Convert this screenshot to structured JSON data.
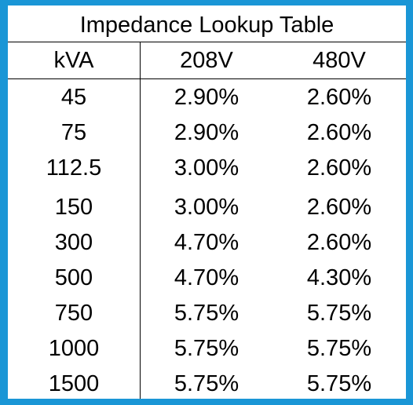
{
  "title": "Impedance Lookup Table",
  "headers": [
    "kVA",
    "208V",
    "480V"
  ],
  "rows": [
    [
      "45",
      "2.90%",
      "2.60%"
    ],
    [
      "75",
      "2.90%",
      "2.60%"
    ],
    [
      "112.5",
      "3.00%",
      "2.60%"
    ],
    [
      "150",
      "3.00%",
      "2.60%"
    ],
    [
      "300",
      "4.70%",
      "2.60%"
    ],
    [
      "500",
      "4.70%",
      "4.30%"
    ],
    [
      "750",
      "5.75%",
      "5.75%"
    ],
    [
      "1000",
      "5.75%",
      "5.75%"
    ],
    [
      "1500",
      "5.75%",
      "5.75%"
    ]
  ],
  "colors": {
    "frame": "#1a96d6",
    "background": "#ffffff",
    "text": "#000000"
  }
}
